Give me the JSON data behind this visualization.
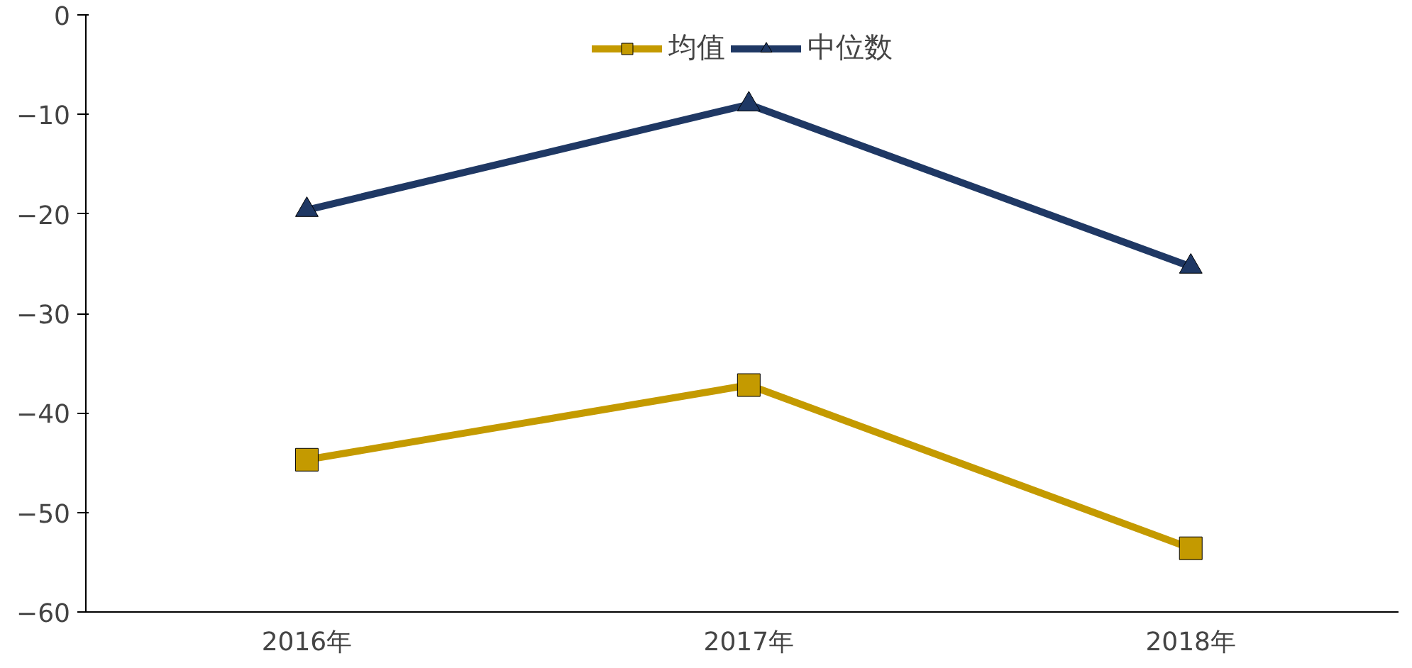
{
  "chart_data": {
    "type": "line",
    "categories": [
      "2016年",
      "2017年",
      "2018年"
    ],
    "series": [
      {
        "name": "均值",
        "color": "#c49a00",
        "marker": "square",
        "values": [
          -44.7,
          -37.2,
          -53.6
        ]
      },
      {
        "name": "中位数",
        "color": "#1f3864",
        "marker": "triangle",
        "values": [
          -19.6,
          -9.0,
          -25.3
        ]
      }
    ],
    "ylim": [
      -60,
      0
    ],
    "yticks": [
      -60,
      -50,
      -40,
      -30,
      -20,
      -10,
      0
    ],
    "grid": false,
    "legend": "top",
    "line_style": "solid"
  }
}
